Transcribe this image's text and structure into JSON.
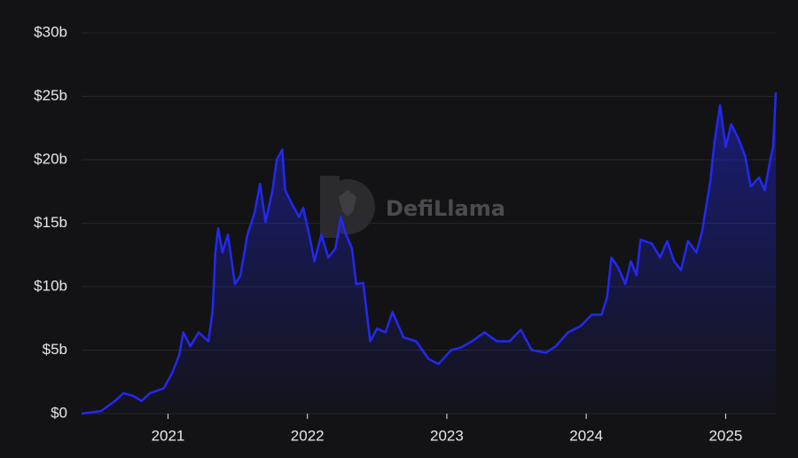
{
  "chart_data": {
    "type": "area",
    "watermark": "DefiLlama",
    "color": "#2329f2",
    "grid": true,
    "xlim": [
      2020.38,
      2025.36
    ],
    "xticks": [
      2021,
      2022,
      2023,
      2024,
      2025
    ],
    "ylim": [
      0,
      30
    ],
    "yticks": [
      {
        "value": 0,
        "label": "$0"
      },
      {
        "value": 5,
        "label": "$5b"
      },
      {
        "value": 10,
        "label": "$10b"
      },
      {
        "value": 15,
        "label": "$15b"
      },
      {
        "value": 20,
        "label": "$20b"
      },
      {
        "value": 25,
        "label": "$25b"
      },
      {
        "value": 30,
        "label": "$30b"
      }
    ],
    "x": [
      2020.38,
      2020.52,
      2020.62,
      2020.68,
      2020.75,
      2020.81,
      2020.87,
      2020.97,
      2021.03,
      2021.08,
      2021.11,
      2021.16,
      2021.22,
      2021.29,
      2021.32,
      2021.34,
      2021.36,
      2021.39,
      2021.43,
      2021.48,
      2021.52,
      2021.57,
      2021.62,
      2021.66,
      2021.7,
      2021.75,
      2021.78,
      2021.82,
      2021.84,
      2021.89,
      2021.94,
      2021.97,
      2022.02,
      2022.05,
      2022.1,
      2022.15,
      2022.2,
      2022.24,
      2022.27,
      2022.32,
      2022.35,
      2022.4,
      2022.45,
      2022.5,
      2022.56,
      2022.61,
      2022.69,
      2022.78,
      2022.87,
      2022.94,
      2023.03,
      2023.1,
      2023.18,
      2023.27,
      2023.36,
      2023.45,
      2023.53,
      2023.61,
      2023.71,
      2023.78,
      2023.87,
      2023.96,
      2024.04,
      2024.11,
      2024.15,
      2024.18,
      2024.23,
      2024.28,
      2024.32,
      2024.36,
      2024.39,
      2024.47,
      2024.53,
      2024.58,
      2024.63,
      2024.68,
      2024.73,
      2024.79,
      2024.83,
      2024.89,
      2024.92,
      2024.96,
      2025.0,
      2025.04,
      2025.09,
      2025.14,
      2025.18,
      2025.24,
      2025.28,
      2025.32,
      2025.34,
      2025.36
    ],
    "values": [
      0,
      0.2,
      1.0,
      1.6,
      1.4,
      1.0,
      1.6,
      2.0,
      3.2,
      4.6,
      6.4,
      5.3,
      6.4,
      5.7,
      8.1,
      12.7,
      14.6,
      12.7,
      14.1,
      10.2,
      10.9,
      14.1,
      15.8,
      18.1,
      15.1,
      17.6,
      20.0,
      20.8,
      17.6,
      16.5,
      15.5,
      16.2,
      13.7,
      12.0,
      14.1,
      12.3,
      13.0,
      15.5,
      14.3,
      13.0,
      10.2,
      10.3,
      5.7,
      6.7,
      6.4,
      8.0,
      6.0,
      5.7,
      4.3,
      3.9,
      5.0,
      5.2,
      5.7,
      6.4,
      5.7,
      5.7,
      6.6,
      5.0,
      4.8,
      5.3,
      6.4,
      6.9,
      7.8,
      7.8,
      9.2,
      12.3,
      11.5,
      10.2,
      12.0,
      10.9,
      13.7,
      13.4,
      12.3,
      13.6,
      12.0,
      11.3,
      13.6,
      12.7,
      14.3,
      18.3,
      21.4,
      24.3,
      21.0,
      22.8,
      21.7,
      20.3,
      17.9,
      18.6,
      17.6,
      20.0,
      21.0,
      25.3
    ]
  }
}
